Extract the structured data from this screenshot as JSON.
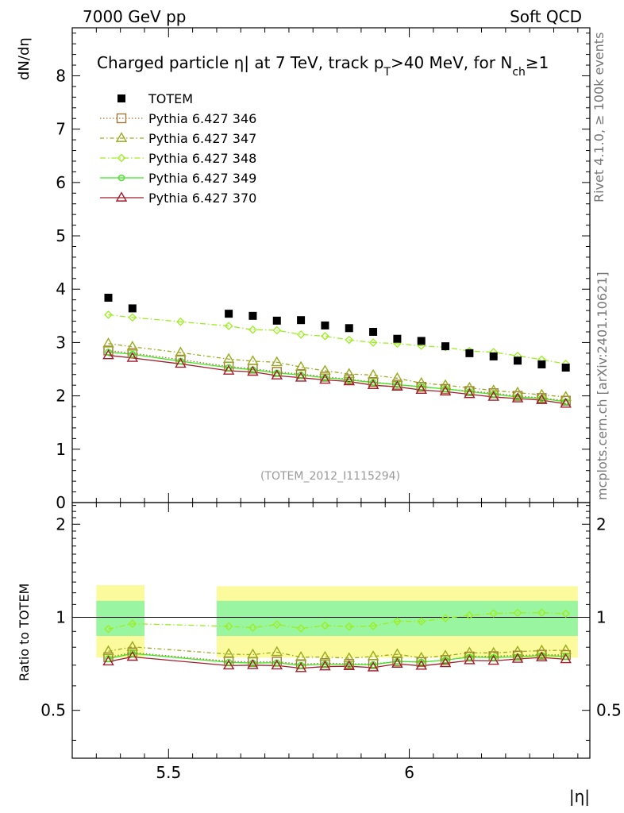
{
  "header": {
    "left": "7000 GeV pp",
    "right": "Soft QCD"
  },
  "side": {
    "rivet": "Rivet 4.1.0, ≥ 100k events",
    "mcplots": "mcplots.cern.ch [arXiv:2401.10621]"
  },
  "chart_data": {
    "type": "scatter",
    "title": "Charged particle η| at 7 TeV, track p_T>40 MeV, for N_ch≥1",
    "title_parts": {
      "a": "Charged particle ",
      "eta": "η",
      "b": "| at 7 TeV, track p",
      "sub_T": "T",
      "c": ">40 MeV, for N",
      "sub_ch": "ch",
      "d": "≥1"
    },
    "ylabel": "dN/dη",
    "xlabel": "|η|",
    "ratio_ylabel": "Ratio to TOTEM",
    "watermark": "(TOTEM_2012_I1115294)",
    "xlim": [
      5.3,
      6.375
    ],
    "ylim": [
      0,
      8.9
    ],
    "ratio_ylim": [
      0.35,
      2.35
    ],
    "x_ticks": [
      "5.5",
      "6"
    ],
    "x_tick_values": [
      5.5,
      6
    ],
    "y_ticks": [
      "0",
      "1",
      "2",
      "3",
      "4",
      "5",
      "6",
      "7",
      "8"
    ],
    "ratio_ticks": [
      "0.5",
      "1",
      "2"
    ],
    "ratio_tick_values": [
      0.5,
      1,
      2
    ],
    "x": [
      5.375,
      5.425,
      5.525,
      5.625,
      5.675,
      5.725,
      5.775,
      5.825,
      5.875,
      5.925,
      5.975,
      6.025,
      6.075,
      6.125,
      6.175,
      6.225,
      6.275,
      6.325
    ],
    "reference": {
      "name": "TOTEM",
      "x": [
        5.375,
        5.425,
        5.625,
        5.675,
        5.725,
        5.775,
        5.825,
        5.875,
        5.925,
        5.975,
        6.025,
        6.075,
        6.125,
        6.175,
        6.225,
        6.275,
        6.325
      ],
      "values": [
        3.84,
        3.64,
        3.54,
        3.5,
        3.41,
        3.42,
        3.32,
        3.27,
        3.2,
        3.07,
        3.03,
        2.93,
        2.8,
        2.74,
        2.66,
        2.59,
        2.53
      ],
      "color": "#000000"
    },
    "series": [
      {
        "name": "Pythia 6.427 346",
        "color": "#a07838",
        "marker": "square",
        "dash": "1.5,2.5",
        "values": [
          2.85,
          2.8,
          2.68,
          2.55,
          2.51,
          2.45,
          2.41,
          2.36,
          2.31,
          2.26,
          2.21,
          2.17,
          2.13,
          2.09,
          2.05,
          2.0,
          1.96,
          1.91
        ]
      },
      {
        "name": "Pythia 6.427 347",
        "color": "#9aaa1e",
        "marker": "triangle",
        "dash": "5,3,1.5,3",
        "values": [
          2.98,
          2.92,
          2.81,
          2.69,
          2.65,
          2.63,
          2.54,
          2.47,
          2.41,
          2.39,
          2.33,
          2.24,
          2.2,
          2.15,
          2.1,
          2.06,
          2.02,
          1.98
        ]
      },
      {
        "name": "Pythia 6.427 348",
        "color": "#9cee1e",
        "marker": "diamond",
        "dash": "7,3,1.5,3",
        "values": [
          3.52,
          3.47,
          3.39,
          3.31,
          3.24,
          3.23,
          3.15,
          3.12,
          3.05,
          3.0,
          2.98,
          2.94,
          2.91,
          2.84,
          2.82,
          2.75,
          2.68,
          2.6
        ]
      },
      {
        "name": "Pythia 6.427 349",
        "color": "#3ee81e",
        "marker": "circle",
        "dash": "",
        "values": [
          2.82,
          2.78,
          2.65,
          2.53,
          2.49,
          2.43,
          2.39,
          2.34,
          2.3,
          2.25,
          2.21,
          2.17,
          2.13,
          2.08,
          2.03,
          1.98,
          1.95,
          1.89
        ]
      },
      {
        "name": "Pythia 6.427 370",
        "color": "#a01c2a",
        "marker": "triangle",
        "dash": "",
        "values": [
          2.76,
          2.71,
          2.6,
          2.47,
          2.45,
          2.38,
          2.34,
          2.3,
          2.27,
          2.2,
          2.17,
          2.11,
          2.08,
          2.03,
          1.98,
          1.95,
          1.92,
          1.85
        ]
      }
    ],
    "ratio_bands": [
      {
        "x_range": [
          5.35,
          5.45
        ],
        "inner": [
          0.87,
          1.13
        ],
        "outer": [
          0.74,
          1.27
        ]
      },
      {
        "x_range": [
          5.6,
          6.35
        ],
        "inner": [
          0.87,
          1.13
        ],
        "outer": [
          0.74,
          1.26
        ]
      }
    ],
    "ratio_reference_line": 1,
    "band_colors": {
      "inner": "#99f5a0",
      "outer": "#fbfa9c"
    }
  }
}
